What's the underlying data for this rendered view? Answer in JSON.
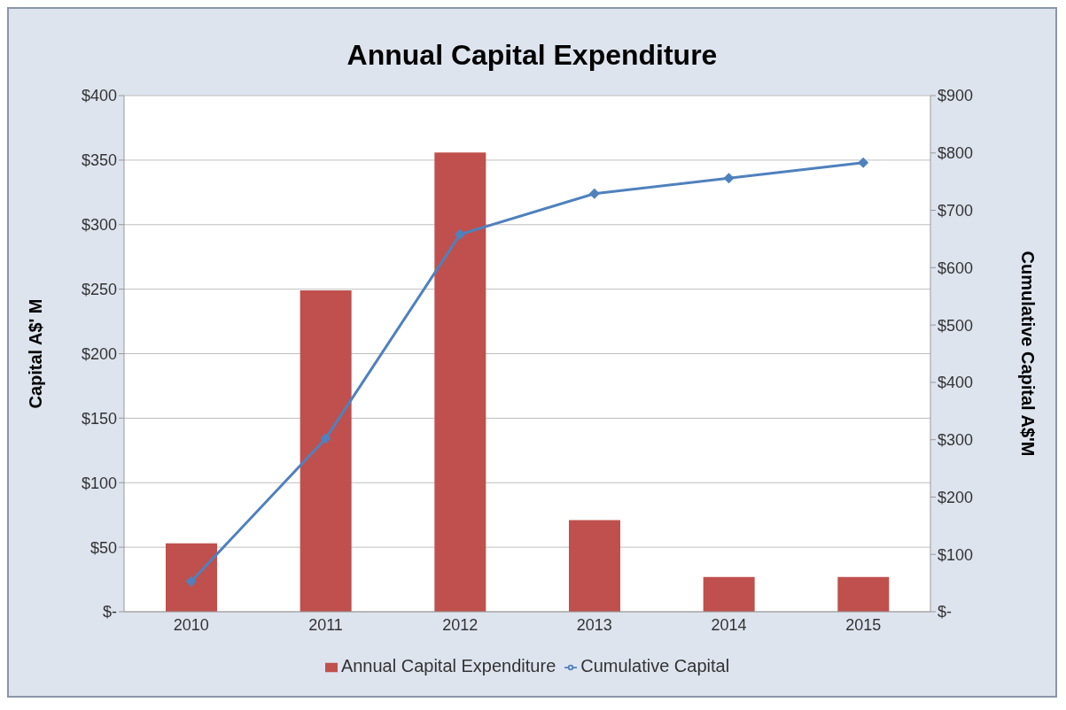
{
  "chart_data": {
    "type": "bar",
    "title": "Annual Capital Expenditure",
    "ylabel": "Capital A$' M",
    "y2label": "Cumulative Capital A$'M",
    "categories": [
      "2010",
      "2011",
      "2012",
      "2013",
      "2014",
      "2015"
    ],
    "series": [
      {
        "name": "Annual Capital Expenditure",
        "color": "#c0504d",
        "values": [
          53,
          249,
          356,
          71,
          27,
          27
        ]
      },
      {
        "name": "Cumulative Capital",
        "type": "line",
        "axis": "y2",
        "color": "#4f81bd",
        "marker": "diamond",
        "values": [
          53,
          302,
          658,
          729,
          756,
          783
        ]
      }
    ],
    "ylim": [
      0,
      400
    ],
    "yticks": [
      {
        "value": 0,
        "label": "$-"
      },
      {
        "value": 50,
        "label": "$50"
      },
      {
        "value": 100,
        "label": "$100"
      },
      {
        "value": 150,
        "label": "$150"
      },
      {
        "value": 200,
        "label": "$200"
      },
      {
        "value": 250,
        "label": "$250"
      },
      {
        "value": 300,
        "label": "$300"
      },
      {
        "value": 350,
        "label": "$350"
      },
      {
        "value": 400,
        "label": "$400"
      }
    ],
    "y2lim": [
      0,
      900
    ],
    "y2ticks": [
      {
        "value": 0,
        "label": "$-"
      },
      {
        "value": 100,
        "label": "$100"
      },
      {
        "value": 200,
        "label": "$200"
      },
      {
        "value": 300,
        "label": "$300"
      },
      {
        "value": 400,
        "label": "$400"
      },
      {
        "value": 500,
        "label": "$500"
      },
      {
        "value": 600,
        "label": "$600"
      },
      {
        "value": 700,
        "label": "$700"
      },
      {
        "value": 800,
        "label": "$800"
      },
      {
        "value": 900,
        "label": "$900"
      }
    ],
    "grid": "y",
    "legend": "bottom"
  }
}
